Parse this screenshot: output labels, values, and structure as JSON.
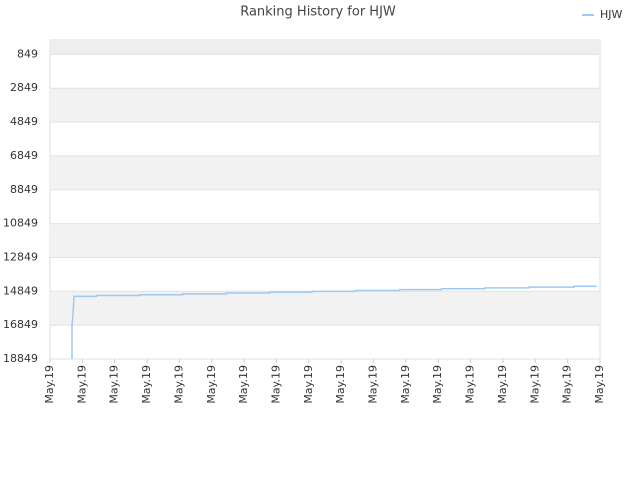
{
  "chart_data": {
    "type": "line",
    "title": "Ranking History for HJW",
    "x": [
      0.68,
      0.68,
      0.72,
      0.74,
      1.43,
      1.43,
      2.78,
      2.78,
      4.1,
      4.1,
      5.45,
      5.45,
      6.8,
      6.8,
      8.1,
      8.1,
      9.45,
      9.45,
      10.8,
      10.8,
      12.1,
      12.1,
      13.45,
      13.45,
      14.8,
      14.8,
      16.2,
      16.2,
      16.9
    ],
    "series": [
      {
        "name": "HJW",
        "color": "#9ec9f0",
        "values": [
          18849,
          16900,
          16000,
          15150,
          15150,
          15100,
          15100,
          15050,
          15050,
          15000,
          15000,
          14950,
          14950,
          14900,
          14900,
          14850,
          14850,
          14800,
          14800,
          14750,
          14750,
          14700,
          14700,
          14650,
          14650,
          14600,
          14600,
          14550,
          14550
        ]
      }
    ],
    "xlim": [
      0,
      17
    ],
    "xticks": [
      {
        "value": 0,
        "label": "May.19"
      },
      {
        "value": 1,
        "label": "May.19"
      },
      {
        "value": 2,
        "label": "May.19"
      },
      {
        "value": 3,
        "label": "May.19"
      },
      {
        "value": 4,
        "label": "May.19"
      },
      {
        "value": 5,
        "label": "May.19"
      },
      {
        "value": 6,
        "label": "May.19"
      },
      {
        "value": 7,
        "label": "May.19"
      },
      {
        "value": 8,
        "label": "May.19"
      },
      {
        "value": 9,
        "label": "May.19"
      },
      {
        "value": 10,
        "label": "May.19"
      },
      {
        "value": 11,
        "label": "May.19"
      },
      {
        "value": 12,
        "label": "May.19"
      },
      {
        "value": 13,
        "label": "May.19"
      },
      {
        "value": 14,
        "label": "May.19"
      },
      {
        "value": 15,
        "label": "May.19"
      },
      {
        "value": 16,
        "label": "May.19"
      },
      {
        "value": 17,
        "label": "May.19"
      }
    ],
    "ylim": [
      18849,
      0
    ],
    "yticks": [
      849,
      2849,
      4849,
      6849,
      8849,
      10849,
      12849,
      14849,
      16849,
      18849
    ],
    "grid": true,
    "legend": "top-right"
  }
}
